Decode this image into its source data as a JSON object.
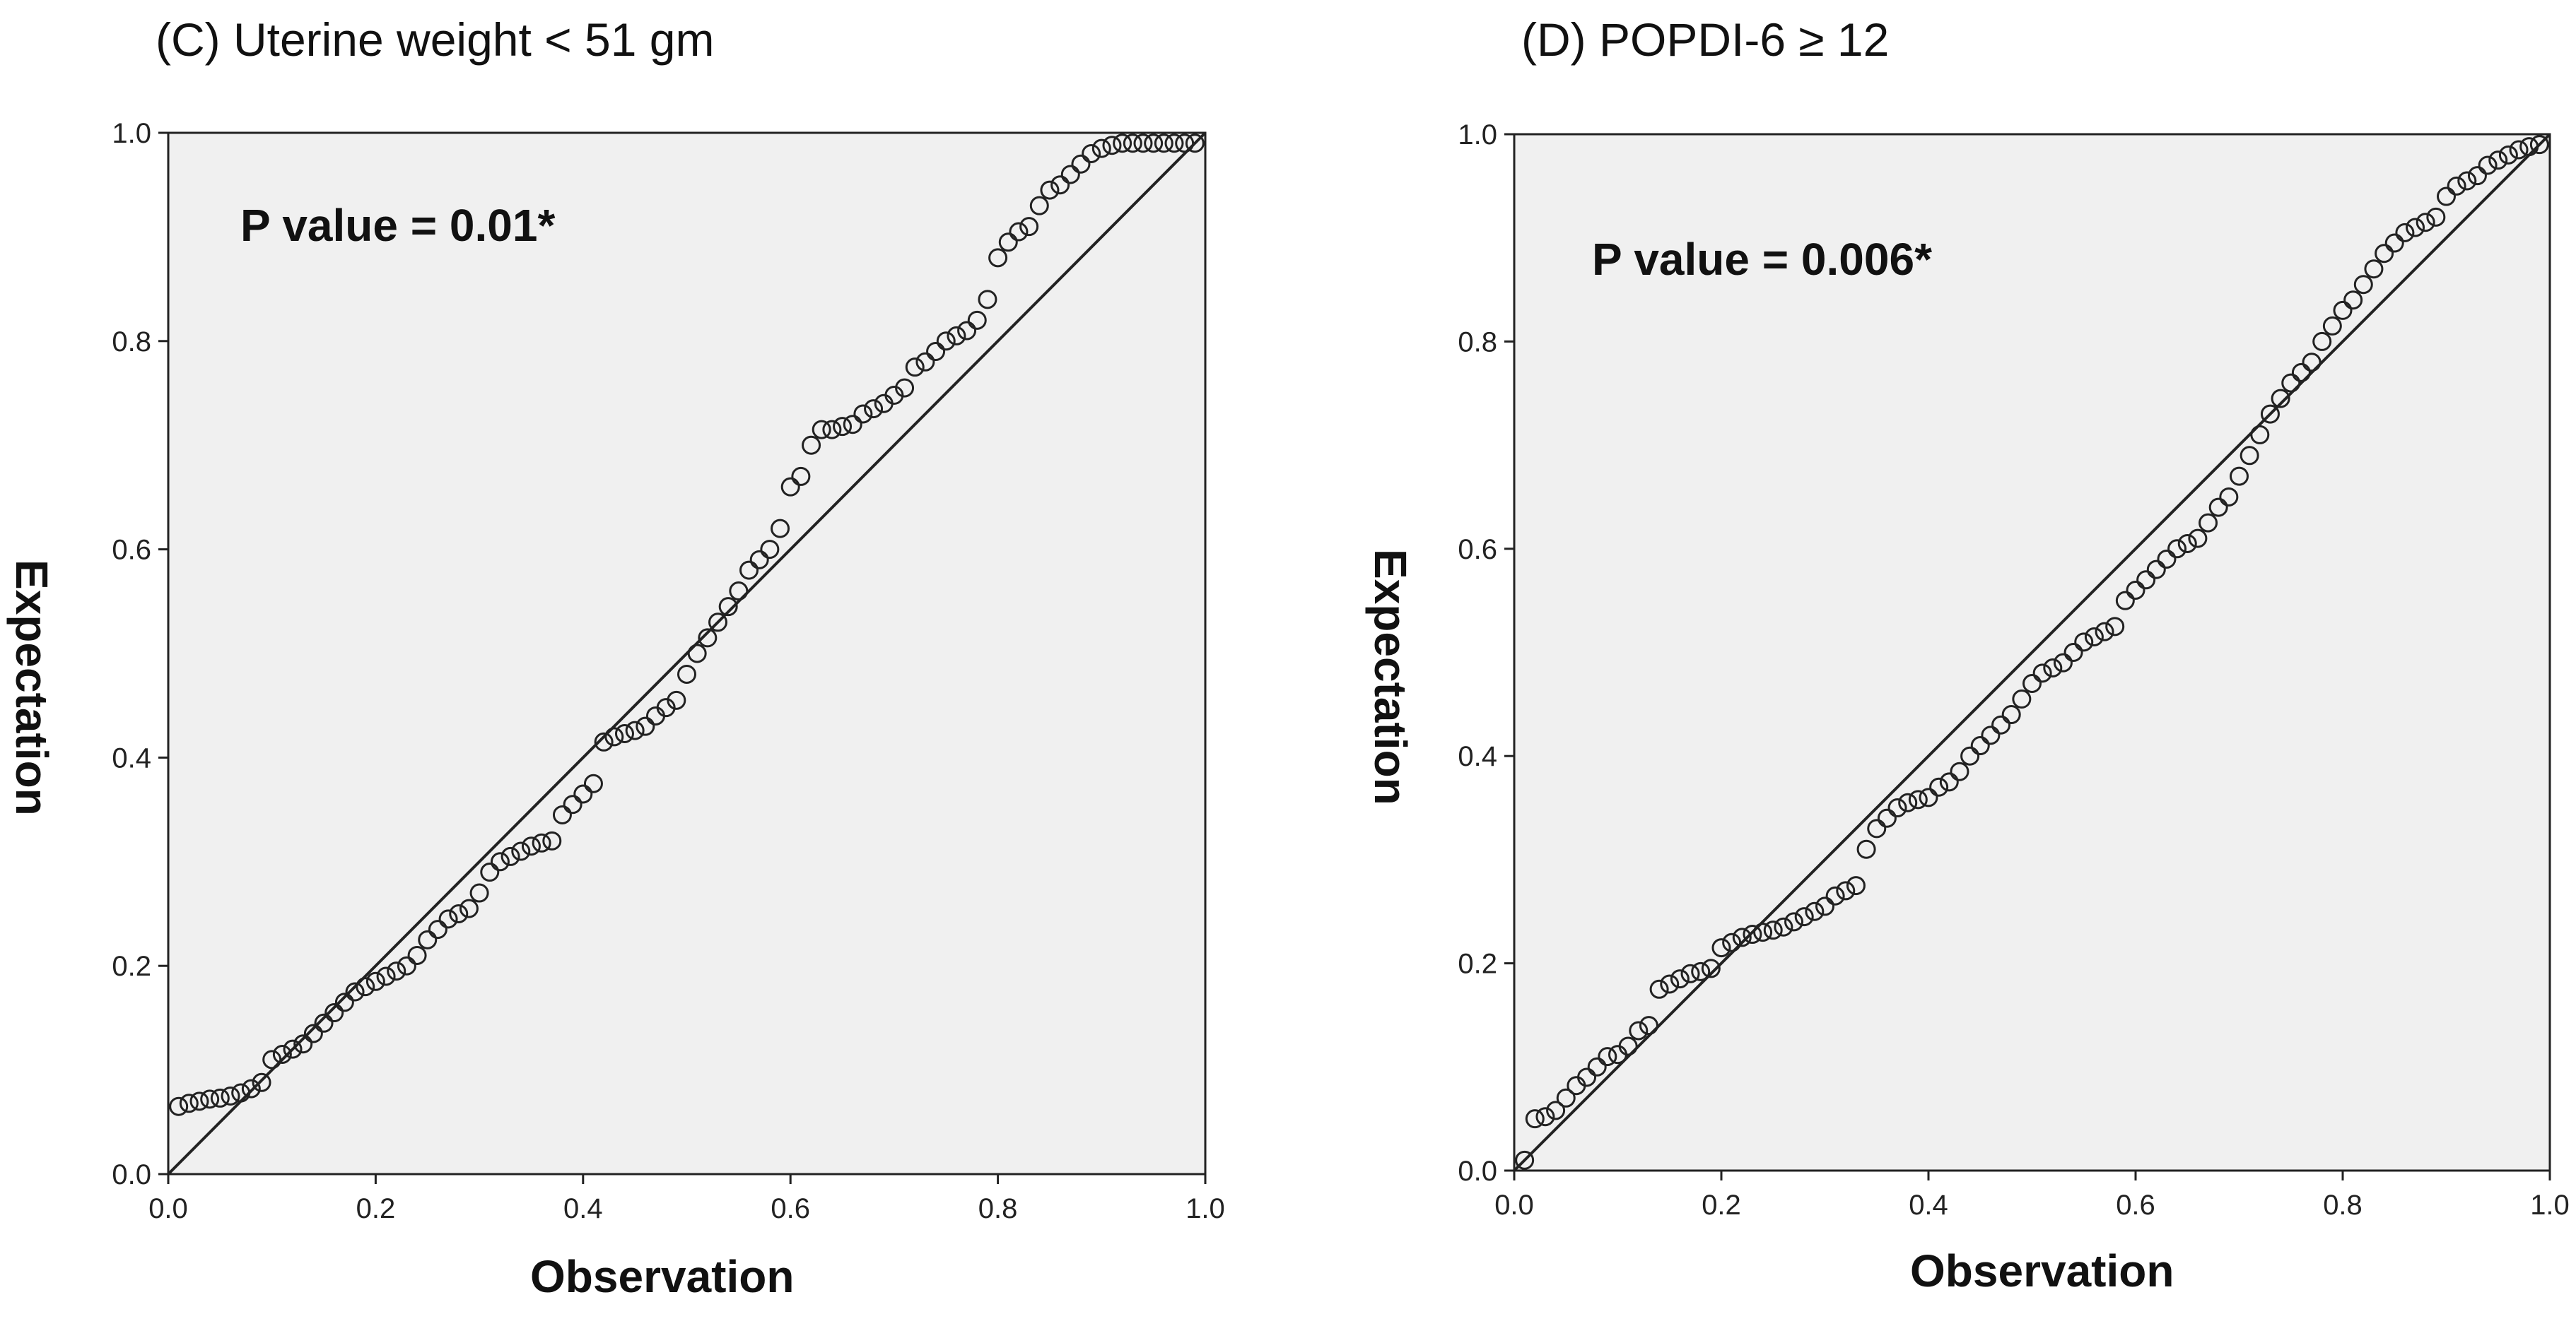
{
  "chart_data": [
    {
      "type": "scatter",
      "panel_title": "(C) Uterine weight < 51 gm",
      "xlabel": "Observation",
      "ylabel": "Expectation",
      "annotation": "P value = 0.01*",
      "xlim": [
        0,
        1
      ],
      "ylim": [
        0,
        1
      ],
      "xticks": [
        "0.0",
        "0.2",
        "0.4",
        "0.6",
        "0.8",
        "1.0"
      ],
      "yticks": [
        "0.0",
        "0.2",
        "0.4",
        "0.6",
        "0.8",
        "1.0"
      ],
      "reference_line": {
        "x": [
          0,
          1
        ],
        "y": [
          0,
          1
        ]
      },
      "series": [
        {
          "name": "points",
          "x": [
            0.01,
            0.02,
            0.03,
            0.04,
            0.05,
            0.06,
            0.07,
            0.08,
            0.09,
            0.1,
            0.11,
            0.12,
            0.13,
            0.14,
            0.15,
            0.16,
            0.17,
            0.18,
            0.19,
            0.2,
            0.21,
            0.22,
            0.23,
            0.24,
            0.25,
            0.26,
            0.27,
            0.28,
            0.29,
            0.3,
            0.31,
            0.32,
            0.33,
            0.34,
            0.35,
            0.36,
            0.37,
            0.38,
            0.39,
            0.4,
            0.41,
            0.42,
            0.43,
            0.44,
            0.45,
            0.46,
            0.47,
            0.48,
            0.49,
            0.5,
            0.51,
            0.52,
            0.53,
            0.54,
            0.55,
            0.56,
            0.57,
            0.58,
            0.59,
            0.6,
            0.61,
            0.62,
            0.63,
            0.64,
            0.65,
            0.66,
            0.67,
            0.68,
            0.69,
            0.7,
            0.71,
            0.72,
            0.73,
            0.74,
            0.75,
            0.76,
            0.77,
            0.78,
            0.79,
            0.8,
            0.81,
            0.82,
            0.83,
            0.84,
            0.85,
            0.86,
            0.87,
            0.88,
            0.89,
            0.9,
            0.91,
            0.92,
            0.93,
            0.94,
            0.95,
            0.96,
            0.97,
            0.98,
            0.99
          ],
          "y": [
            0.065,
            0.068,
            0.07,
            0.072,
            0.073,
            0.075,
            0.078,
            0.082,
            0.088,
            0.11,
            0.115,
            0.12,
            0.125,
            0.135,
            0.145,
            0.155,
            0.165,
            0.175,
            0.18,
            0.185,
            0.19,
            0.195,
            0.2,
            0.21,
            0.225,
            0.235,
            0.245,
            0.25,
            0.255,
            0.27,
            0.29,
            0.3,
            0.305,
            0.31,
            0.315,
            0.318,
            0.32,
            0.345,
            0.355,
            0.365,
            0.375,
            0.415,
            0.42,
            0.423,
            0.426,
            0.43,
            0.44,
            0.448,
            0.455,
            0.48,
            0.5,
            0.515,
            0.53,
            0.545,
            0.56,
            0.58,
            0.59,
            0.6,
            0.62,
            0.66,
            0.67,
            0.7,
            0.715,
            0.715,
            0.718,
            0.72,
            0.73,
            0.735,
            0.74,
            0.748,
            0.755,
            0.775,
            0.78,
            0.79,
            0.8,
            0.805,
            0.81,
            0.82,
            0.84,
            0.88,
            0.895,
            0.905,
            0.91,
            0.93,
            0.945,
            0.95,
            0.96,
            0.97,
            0.98,
            0.985,
            0.988,
            0.99,
            0.99,
            0.99,
            0.99,
            0.99,
            0.99,
            0.99,
            0.99
          ]
        }
      ]
    },
    {
      "type": "scatter",
      "panel_title": "(D) POPDI-6 ≥ 12",
      "xlabel": "Observation",
      "ylabel": "Expectation",
      "annotation": "P value = 0.006*",
      "xlim": [
        0,
        1
      ],
      "ylim": [
        0,
        1
      ],
      "xticks": [
        "0.0",
        "0.2",
        "0.4",
        "0.6",
        "0.8",
        "1.0"
      ],
      "yticks": [
        "0.0",
        "0.2",
        "0.4",
        "0.6",
        "0.8",
        "1.0"
      ],
      "reference_line": {
        "x": [
          0,
          1
        ],
        "y": [
          0,
          1
        ]
      },
      "series": [
        {
          "name": "points",
          "x": [
            0.01,
            0.02,
            0.03,
            0.04,
            0.05,
            0.06,
            0.07,
            0.08,
            0.09,
            0.1,
            0.11,
            0.12,
            0.13,
            0.14,
            0.15,
            0.16,
            0.17,
            0.18,
            0.19,
            0.2,
            0.21,
            0.22,
            0.23,
            0.24,
            0.25,
            0.26,
            0.27,
            0.28,
            0.29,
            0.3,
            0.31,
            0.32,
            0.33,
            0.34,
            0.35,
            0.36,
            0.37,
            0.38,
            0.39,
            0.4,
            0.41,
            0.42,
            0.43,
            0.44,
            0.45,
            0.46,
            0.47,
            0.48,
            0.49,
            0.5,
            0.51,
            0.52,
            0.53,
            0.54,
            0.55,
            0.56,
            0.57,
            0.58,
            0.59,
            0.6,
            0.61,
            0.62,
            0.63,
            0.64,
            0.65,
            0.66,
            0.67,
            0.68,
            0.69,
            0.7,
            0.71,
            0.72,
            0.73,
            0.74,
            0.75,
            0.76,
            0.77,
            0.78,
            0.79,
            0.8,
            0.81,
            0.82,
            0.83,
            0.84,
            0.85,
            0.86,
            0.87,
            0.88,
            0.89,
            0.9,
            0.91,
            0.92,
            0.93,
            0.94,
            0.95,
            0.96,
            0.97,
            0.98,
            0.99
          ],
          "y": [
            0.01,
            0.05,
            0.052,
            0.058,
            0.07,
            0.082,
            0.09,
            0.1,
            0.11,
            0.112,
            0.12,
            0.135,
            0.14,
            0.175,
            0.18,
            0.185,
            0.19,
            0.192,
            0.195,
            0.215,
            0.22,
            0.225,
            0.228,
            0.23,
            0.232,
            0.235,
            0.24,
            0.245,
            0.25,
            0.255,
            0.265,
            0.27,
            0.275,
            0.31,
            0.33,
            0.34,
            0.35,
            0.355,
            0.358,
            0.36,
            0.37,
            0.375,
            0.385,
            0.4,
            0.41,
            0.42,
            0.43,
            0.44,
            0.455,
            0.47,
            0.48,
            0.485,
            0.49,
            0.5,
            0.51,
            0.515,
            0.52,
            0.525,
            0.55,
            0.56,
            0.57,
            0.58,
            0.59,
            0.6,
            0.605,
            0.61,
            0.625,
            0.64,
            0.65,
            0.67,
            0.69,
            0.71,
            0.73,
            0.745,
            0.76,
            0.77,
            0.78,
            0.8,
            0.815,
            0.83,
            0.84,
            0.855,
            0.87,
            0.885,
            0.895,
            0.905,
            0.91,
            0.915,
            0.92,
            0.94,
            0.95,
            0.955,
            0.96,
            0.97,
            0.975,
            0.98,
            0.985,
            0.988,
            0.99
          ]
        }
      ]
    }
  ]
}
